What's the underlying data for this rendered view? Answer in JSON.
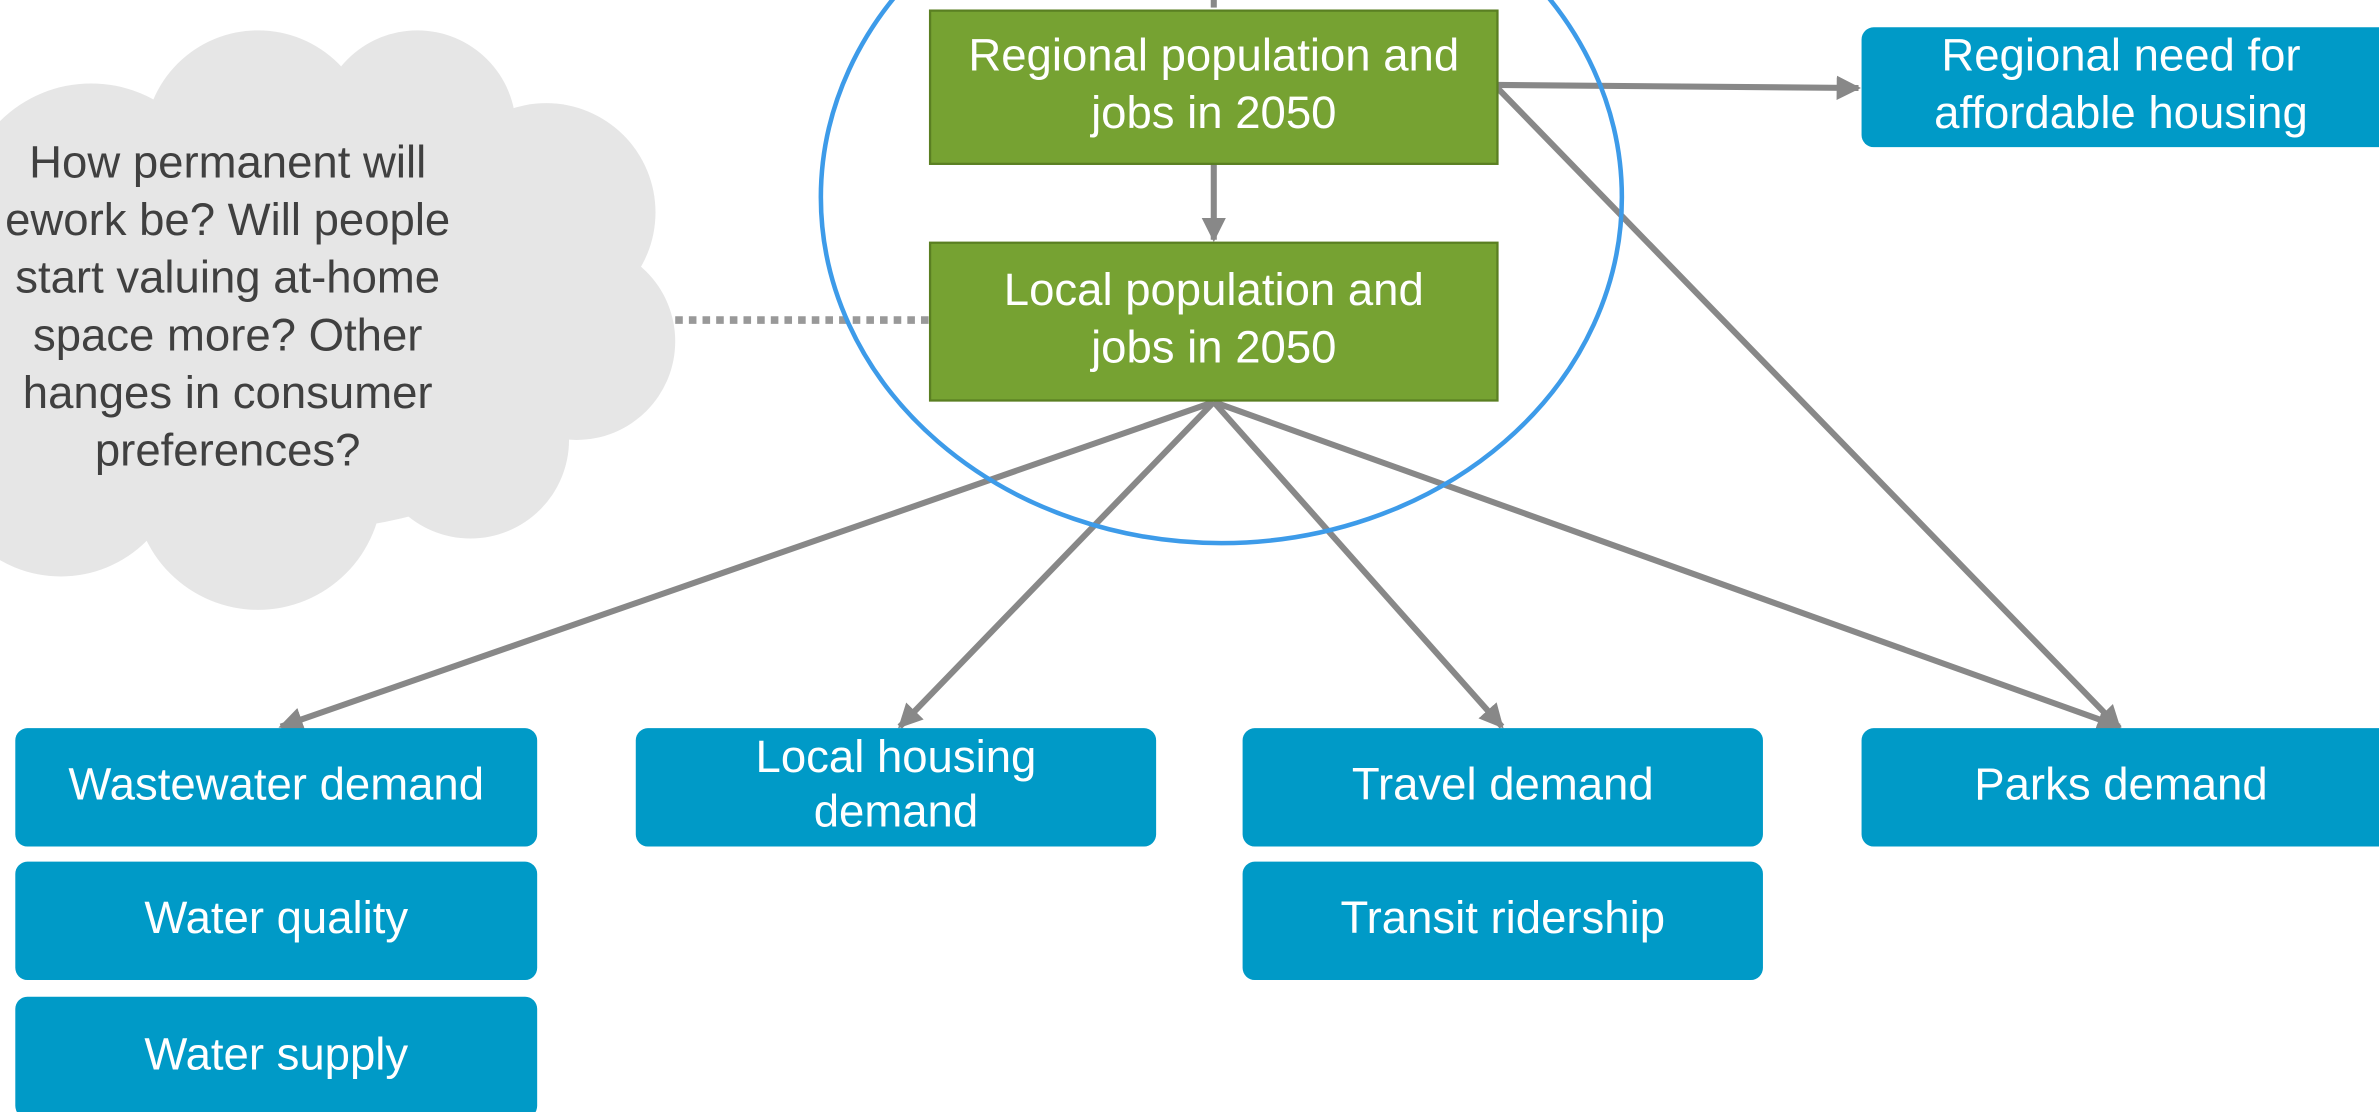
{
  "cloud": {
    "lines": [
      "How permanent will",
      "ework be? Will people",
      "start valuing at-home",
      "space more? Other",
      "hanges in consumer",
      "preferences?"
    ]
  },
  "nodes": [
    {
      "id": "regional",
      "lines": [
        "Regional population and",
        "jobs in 2050"
      ]
    },
    {
      "id": "local",
      "lines": [
        "Local population and",
        "jobs in 2050"
      ]
    },
    {
      "id": "need",
      "lines": [
        "Regional need for",
        "affordable housing"
      ]
    },
    {
      "id": "wastewater",
      "lines": [
        "Wastewater demand"
      ]
    },
    {
      "id": "quality",
      "lines": [
        "Water quality"
      ]
    },
    {
      "id": "supply",
      "lines": [
        "Water supply"
      ]
    },
    {
      "id": "housing",
      "lines": [
        "Local housing",
        "demand"
      ]
    },
    {
      "id": "travel",
      "lines": [
        "Travel demand"
      ]
    },
    {
      "id": "transit",
      "lines": [
        "Transit ridership"
      ]
    },
    {
      "id": "parks",
      "lines": [
        "Parks demand"
      ]
    }
  ]
}
